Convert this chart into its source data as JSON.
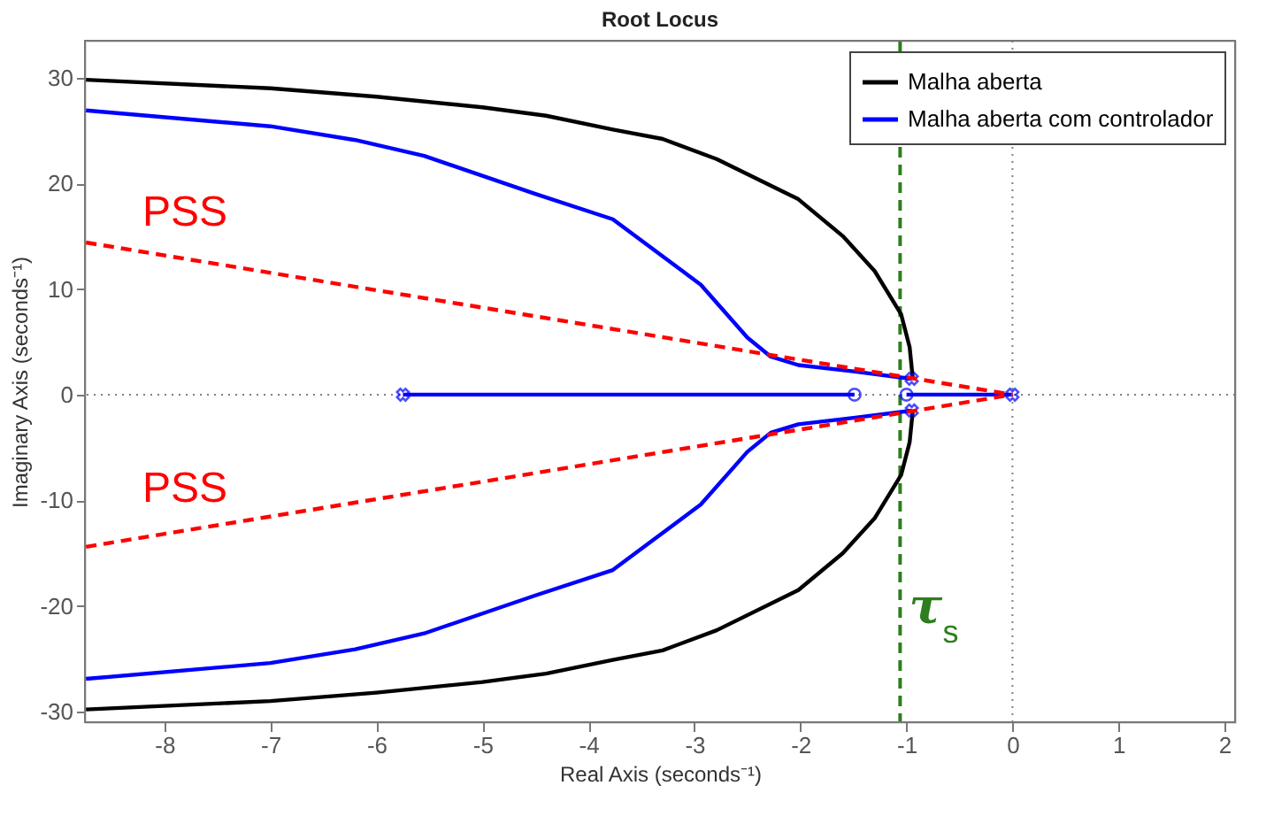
{
  "chart_data": {
    "type": "line",
    "title": "Root Locus",
    "xlabel": "Real Axis (seconds⁻¹)",
    "ylabel": "Imaginary Axis (seconds⁻¹)",
    "xlim": [
      -8.75,
      2.1
    ],
    "ylim": [
      -31,
      33.5
    ],
    "xticks": [
      -8,
      -7,
      -6,
      -5,
      -4,
      -3,
      -2,
      -1,
      0,
      1,
      2
    ],
    "yticks": [
      -30,
      -20,
      -10,
      0,
      10,
      20,
      30
    ],
    "grid": false,
    "legend": "top right",
    "marker": "none",
    "line_style": "solid",
    "series": [
      {
        "name": "Malha aberta",
        "color": "#000000",
        "x": [
          -8.74,
          -7,
          -6,
          -5,
          -4.4,
          -3.77,
          -3.3,
          -2.79,
          -2.02,
          -1.6,
          -1.3,
          -1.05,
          -0.97,
          -0.94
        ],
        "values": [
          29.8,
          29.0,
          28.2,
          27.2,
          26.4,
          25.1,
          24.2,
          22.3,
          18.5,
          15,
          11.7,
          7.6,
          4.5,
          1.5
        ]
      },
      {
        "color": "#000000",
        "x": [
          -8.74,
          -7,
          -6,
          -5,
          -4.4,
          -3.77,
          -3.3,
          -2.79,
          -2.02,
          -1.6,
          -1.3,
          -1.05,
          -0.97,
          -0.94
        ],
        "values": [
          -29.8,
          -29.0,
          -28.2,
          -27.2,
          -26.4,
          -25.1,
          -24.2,
          -22.3,
          -18.5,
          -15,
          -11.7,
          -7.6,
          -4.5,
          -1.5
        ]
      },
      {
        "name": "Malha aberta com controlador",
        "color": "#0000ff",
        "x": [
          -8.74,
          -7,
          -6.2,
          -5.55,
          -4.5,
          -3.77,
          -2.94,
          -2.5,
          -2.28,
          -2.02,
          -1.5,
          -0.95
        ],
        "values": [
          26.9,
          25.4,
          24.1,
          22.6,
          19,
          16.6,
          10.4,
          5.4,
          3.6,
          2.8,
          2.2,
          1.5
        ]
      },
      {
        "color": "#0000ff",
        "x": [
          -8.74,
          -7,
          -6.2,
          -5.55,
          -4.5,
          -3.77,
          -2.94,
          -2.5,
          -2.28,
          -2.02,
          -1.5,
          -0.95
        ],
        "values": [
          -26.9,
          -25.4,
          -24.1,
          -22.6,
          -19,
          -16.6,
          -10.4,
          -5.4,
          -3.6,
          -2.8,
          -2.2,
          -1.5
        ]
      },
      {
        "color": "#0000ff",
        "x": [
          -5.75,
          -1.49
        ],
        "values": [
          0,
          0
        ]
      },
      {
        "color": "#0000ff",
        "x": [
          -1.0,
          0
        ],
        "values": [
          0,
          0
        ]
      },
      {
        "type": "scatter",
        "marker": "cross",
        "color": "#0000ff",
        "x": [
          -5.75,
          0,
          -0.95,
          -0.95
        ],
        "values": [
          0,
          0,
          1.5,
          -1.5
        ]
      },
      {
        "type": "scatter",
        "marker": "circle",
        "color": "#0000ff",
        "x": [
          -1.49,
          -1.0
        ],
        "values": [
          0,
          0
        ]
      },
      {
        "color": "#ff0000",
        "line_style": "dashed",
        "x": [
          -8.74,
          0
        ],
        "values": [
          14.4,
          0
        ]
      },
      {
        "color": "#ff0000",
        "line_style": "dashed",
        "x": [
          -8.74,
          0
        ],
        "values": [
          -14.4,
          0
        ]
      }
    ],
    "ref_lines": [
      {
        "axis": "x",
        "value": 0,
        "color": "#808080",
        "line_style": "dotted"
      },
      {
        "axis": "y",
        "value": 0,
        "color": "#808080",
        "line_style": "dotted"
      },
      {
        "axis": "x",
        "value": -1.06,
        "label": "τ$_{s}$",
        "color": "#2e7d1e",
        "line_style": "dashed"
      }
    ],
    "annotations": [
      "PSS",
      "PSS"
    ]
  }
}
